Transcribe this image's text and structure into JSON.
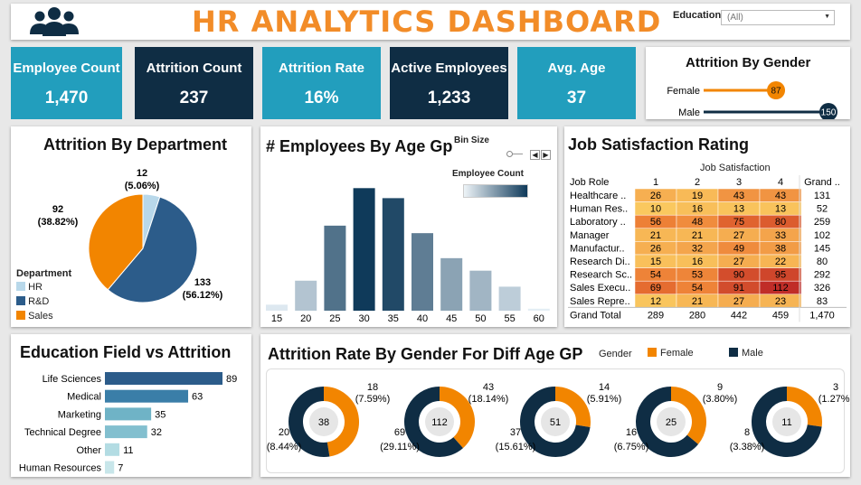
{
  "header": {
    "title": "HR ANALYTICS DASHBOARD",
    "icon": "users-icon",
    "education_filter": {
      "label": "Education",
      "value": "(All)"
    }
  },
  "colors": {
    "teal": "#229ebd",
    "navy": "#0f2d44",
    "orange": "#f28500",
    "title_orange": "#f28c28"
  },
  "kpis": [
    {
      "label": "Employee Count",
      "value": "1,470",
      "color": "#229ebd"
    },
    {
      "label": "Attrition Count",
      "value": "237",
      "color": "#0f2d44"
    },
    {
      "label": "Attrition Rate",
      "value": "16%",
      "color": "#229ebd"
    },
    {
      "label": "Active Employees",
      "value": "1,233",
      "color": "#0f2d44"
    },
    {
      "label": "Avg. Age",
      "value": "37",
      "color": "#229ebd"
    }
  ],
  "gender_panel": {
    "title": "Attrition By Gender",
    "rows": [
      {
        "label": "Female",
        "value": 87,
        "color": "#f28500"
      },
      {
        "label": "Male",
        "value": 150,
        "color": "#0f2d44"
      }
    ]
  },
  "dept_panel": {
    "title": "Attrition By Department",
    "legend_title": "Department",
    "slices": [
      {
        "name": "HR",
        "value": 12,
        "label": "12",
        "pct": "(5.06%)",
        "color": "#b8d8ea"
      },
      {
        "name": "R&D",
        "value": 133,
        "label": "133",
        "pct": "(56.12%)",
        "color": "#2c5c8a"
      },
      {
        "name": "Sales",
        "value": 92,
        "label": "92",
        "pct": "(38.82%)",
        "color": "#f28500"
      }
    ]
  },
  "age_panel": {
    "title": "# Employees By Age Gp",
    "bin_label": "Bin Size",
    "legend_title": "Employee Count",
    "categories": [
      "15",
      "20",
      "25",
      "30",
      "35",
      "40",
      "45",
      "50",
      "55",
      "60"
    ],
    "values": [
      12,
      60,
      170,
      245,
      225,
      155,
      105,
      80,
      48,
      4
    ],
    "ylim": [
      0,
      260
    ]
  },
  "job_panel": {
    "title": "Job Satisfaction Rating",
    "col_group": "Job Satisfaction",
    "row_header": "Job Role",
    "columns": [
      "1",
      "2",
      "3",
      "4",
      "Grand .."
    ],
    "rows": [
      {
        "role": "Healthcare ..",
        "vals": [
          "26",
          "19",
          "43",
          "43"
        ],
        "total": "131"
      },
      {
        "role": "Human Res..",
        "vals": [
          "10",
          "16",
          "13",
          "13"
        ],
        "total": "52"
      },
      {
        "role": "Laboratory ..",
        "vals": [
          "56",
          "48",
          "75",
          "80"
        ],
        "total": "259"
      },
      {
        "role": "Manager",
        "vals": [
          "21",
          "21",
          "27",
          "33"
        ],
        "total": "102"
      },
      {
        "role": "Manufactur..",
        "vals": [
          "26",
          "32",
          "49",
          "38"
        ],
        "total": "145"
      },
      {
        "role": "Research Di..",
        "vals": [
          "15",
          "16",
          "27",
          "22"
        ],
        "total": "80"
      },
      {
        "role": "Research Sc..",
        "vals": [
          "54",
          "53",
          "90",
          "95"
        ],
        "total": "292"
      },
      {
        "role": "Sales Execu..",
        "vals": [
          "69",
          "54",
          "91",
          "112"
        ],
        "total": "326"
      },
      {
        "role": "Sales Repre..",
        "vals": [
          "12",
          "21",
          "27",
          "23"
        ],
        "total": "83"
      }
    ],
    "grand": {
      "role": "Grand Total",
      "vals": [
        "289",
        "280",
        "442",
        "459"
      ],
      "total": "1,470"
    }
  },
  "edu_panel": {
    "title": "Education Field vs Attrition",
    "categories": [
      "Life Sciences",
      "Medical",
      "Marketing",
      "Technical Degree",
      "Other",
      "Human Resources"
    ],
    "values": [
      89,
      63,
      35,
      32,
      11,
      7
    ],
    "colors": [
      "#2c5c8a",
      "#3a7ea8",
      "#6fb3c6",
      "#82bfcf",
      "#b3dce3",
      "#c8e6ea"
    ]
  },
  "donut_panel": {
    "title": "Attrition Rate By Gender For Diff Age GP",
    "legend_title": "Gender",
    "legend": [
      {
        "name": "Female",
        "color": "#f28500"
      },
      {
        "name": "Male",
        "color": "#0f2d44"
      }
    ],
    "donuts": [
      {
        "total": "38",
        "female": 18,
        "female_label": "18",
        "female_pct": "(7.59%)",
        "male": 20,
        "male_label": "20",
        "male_pct": "(8.44%)"
      },
      {
        "total": "112",
        "female": 43,
        "female_label": "43",
        "female_pct": "(18.14%)",
        "male": 69,
        "male_label": "69",
        "male_pct": "(29.11%)"
      },
      {
        "total": "51",
        "female": 14,
        "female_label": "14",
        "female_pct": "(5.91%)",
        "male": 37,
        "male_label": "37",
        "male_pct": "(15.61%)"
      },
      {
        "total": "25",
        "female": 9,
        "female_label": "9",
        "female_pct": "(3.80%)",
        "male": 16,
        "male_label": "16",
        "male_pct": "(6.75%)"
      },
      {
        "total": "11",
        "female": 3,
        "female_label": "3",
        "female_pct": "(1.27%)",
        "male": 8,
        "male_label": "8",
        "male_pct": "(3.38%)"
      }
    ]
  },
  "chart_data": [
    {
      "type": "pie",
      "title": "Attrition By Department",
      "categories": [
        "HR",
        "R&D",
        "Sales"
      ],
      "values": [
        12,
        133,
        92
      ]
    },
    {
      "type": "bar",
      "title": "# Employees By Age Gp",
      "categories": [
        "15",
        "20",
        "25",
        "30",
        "35",
        "40",
        "45",
        "50",
        "55",
        "60"
      ],
      "values": [
        12,
        60,
        170,
        245,
        225,
        155,
        105,
        80,
        48,
        4
      ]
    },
    {
      "type": "bar",
      "title": "Education Field vs Attrition",
      "categories": [
        "Life Sciences",
        "Medical",
        "Marketing",
        "Technical Degree",
        "Other",
        "Human Resources"
      ],
      "values": [
        89,
        63,
        35,
        32,
        11,
        7
      ]
    },
    {
      "type": "bar",
      "title": "Attrition By Gender",
      "categories": [
        "Female",
        "Male"
      ],
      "values": [
        87,
        150
      ]
    },
    {
      "type": "pie",
      "title": "Attrition Rate By Gender For Diff Age GP",
      "series": [
        {
          "name": "Female",
          "values": [
            18,
            43,
            14,
            9,
            3
          ]
        },
        {
          "name": "Male",
          "values": [
            20,
            69,
            37,
            16,
            8
          ]
        }
      ]
    },
    {
      "type": "heatmap",
      "title": "Job Satisfaction Rating",
      "x": [
        "1",
        "2",
        "3",
        "4"
      ],
      "y": [
        "Healthcare ..",
        "Human Res..",
        "Laboratory ..",
        "Manager",
        "Manufactur..",
        "Research Di..",
        "Research Sc..",
        "Sales Execu..",
        "Sales Repre.."
      ],
      "values": [
        [
          26,
          19,
          43,
          43
        ],
        [
          10,
          16,
          13,
          13
        ],
        [
          56,
          48,
          75,
          80
        ],
        [
          21,
          21,
          27,
          33
        ],
        [
          26,
          32,
          49,
          38
        ],
        [
          15,
          16,
          27,
          22
        ],
        [
          54,
          53,
          90,
          95
        ],
        [
          69,
          54,
          91,
          112
        ],
        [
          12,
          21,
          27,
          23
        ]
      ]
    }
  ]
}
